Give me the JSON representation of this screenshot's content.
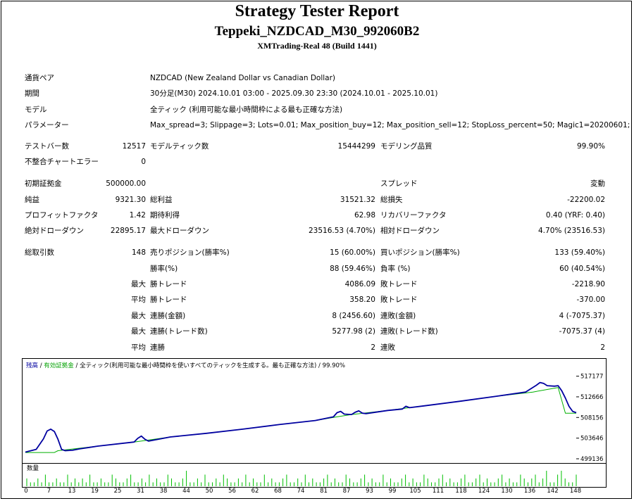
{
  "header": {
    "title": "Strategy Tester Report",
    "ea_name": "Teppeki_NZDCAD_M30_992060B2",
    "server": "XMTrading-Real 48 (Build 1441)"
  },
  "settings": [
    {
      "label": "通貨ペア",
      "value": "NZDCAD (New Zealand Dollar vs Canadian Dollar)"
    },
    {
      "label": "期間",
      "value": "30分足(M30) 2024.10.01 03:00 - 2025.09.30 23:30 (2024.10.01 - 2025.10.01)"
    },
    {
      "label": "モデル",
      "value": "全ティック (利用可能な最小時間枠による最も正確な方法)"
    },
    {
      "label": "パラメーター",
      "value": "Max_spread=3; Slippage=3; Lots=0.01; Max_position_buy=12; Max_position_sell=12; StopLoss_percent=50; Magic1=20200601;"
    }
  ],
  "stats": {
    "test_bars": {
      "label": "テストバー数",
      "value": "12517"
    },
    "model_ticks": {
      "label": "モデルティック数",
      "value": "15444299"
    },
    "model_quality": {
      "label": "モデリング品質",
      "value": "99.90%"
    },
    "chart_errors": {
      "label": "不整合チャートエラー",
      "value": "0"
    },
    "initial_deposit": {
      "label": "初期証拠金",
      "value": "500000.00"
    },
    "spread": {
      "label": "スプレッド",
      "value": "変動"
    },
    "net_profit": {
      "label": "純益",
      "value": "9321.30"
    },
    "gross_profit": {
      "label": "総利益",
      "value": "31521.32"
    },
    "gross_loss": {
      "label": "総損失",
      "value": "-22200.02"
    },
    "profit_factor": {
      "label": "プロフィットファクタ",
      "value": "1.42"
    },
    "expected_payoff": {
      "label": "期待利得",
      "value": "62.98"
    },
    "recovery_factor": {
      "label": "リカバリーファクタ",
      "value": "0.40 (YRF: 0.40)"
    },
    "abs_drawdown": {
      "label": "絶対ドローダウン",
      "value": "22895.17"
    },
    "max_drawdown": {
      "label": "最大ドローダウン",
      "value": "23516.53 (4.70%)"
    },
    "rel_drawdown": {
      "label": "相対ドローダウン",
      "value": "4.70% (23516.53)"
    },
    "total_trades": {
      "label": "総取引数",
      "value": "148"
    },
    "short_positions": {
      "label": "売りポジション(勝率%)",
      "value": "15 (60.00%)"
    },
    "long_positions": {
      "label": "買いポジション(勝率%)",
      "value": "133 (59.40%)"
    },
    "win_rate": {
      "label": "勝率(%)",
      "value": "88 (59.46%)"
    },
    "loss_rate": {
      "label": "負率 (%)",
      "value": "60 (40.54%)"
    },
    "max_prefix": "最大",
    "avg_prefix": "平均",
    "largest_win": {
      "label": "勝トレード",
      "value": "4086.09"
    },
    "largest_loss": {
      "label": "敗トレード",
      "value": "-2218.90"
    },
    "average_win": {
      "label": "勝トレード",
      "value": "358.20"
    },
    "average_loss": {
      "label": "敗トレード",
      "value": "-370.00"
    },
    "max_consec_wins": {
      "label": "連勝(金額)",
      "value": "8 (2456.60)"
    },
    "max_consec_losses": {
      "label": "連敗(金額)",
      "value": "4 (-7075.37)"
    },
    "max_consec_profit": {
      "label": "連勝(トレード数)",
      "value": "5277.98 (2)"
    },
    "max_consec_loss": {
      "label": "連敗(トレード数)",
      "value": "-7075.37 (4)"
    },
    "avg_consec_wins": {
      "label": "連勝",
      "value": "2"
    },
    "avg_consec_losses": {
      "label": "連敗",
      "value": "2"
    }
  },
  "chart_data": {
    "type": "line",
    "legend": {
      "balance": "残高",
      "sep1": " / ",
      "margin": "有効証拠金",
      "sep2": " / ",
      "model": "全ティック(利用可能な最小時間枠を使いすべてのティックを生成する。最も正確な方法)",
      "sep3": " / ",
      "quality": "99.90%"
    },
    "yticks": [
      "517177",
      "512666",
      "508156",
      "503646",
      "499136"
    ],
    "ylim": [
      499136,
      518500
    ],
    "xlim": [
      0,
      152
    ],
    "colors": {
      "balance": "#00b000",
      "equity": "#0000a0"
    },
    "series": [
      {
        "name": "残高",
        "color": "#00b000",
        "x": [
          0,
          8,
          9,
          20,
          30,
          40,
          50,
          60,
          70,
          80,
          86,
          90,
          100,
          110,
          120,
          130,
          140,
          147,
          149,
          152
        ],
        "y": [
          500500,
          500500,
          500900,
          501900,
          502800,
          503900,
          504700,
          505600,
          506600,
          507500,
          508300,
          508800,
          509700,
          510700,
          511700,
          512800,
          513700,
          514700,
          509100,
          509100
        ]
      },
      {
        "name": "有効証拠金",
        "color": "#0000a0",
        "x": [
          0,
          3,
          5,
          6,
          7,
          8,
          9,
          10,
          11,
          13,
          15,
          20,
          30,
          31,
          32,
          33,
          34,
          40,
          50,
          60,
          70,
          80,
          85,
          86,
          87,
          88,
          90,
          91,
          92,
          93,
          94,
          100,
          104,
          105,
          106,
          110,
          120,
          130,
          138,
          141,
          142,
          143,
          144,
          146,
          147,
          148,
          149,
          150,
          151,
          152
        ],
        "y": [
          500600,
          501200,
          503500,
          505200,
          505600,
          505100,
          503400,
          501200,
          500900,
          501000,
          501300,
          501900,
          502800,
          503600,
          504100,
          503400,
          503000,
          503900,
          504700,
          505600,
          506600,
          507500,
          508300,
          509200,
          509500,
          508900,
          508800,
          509300,
          509600,
          509100,
          509000,
          509700,
          510000,
          510600,
          510300,
          510700,
          511700,
          512800,
          513700,
          515200,
          515800,
          515600,
          515100,
          515000,
          515100,
          514000,
          512400,
          510600,
          509500,
          509200
        ]
      }
    ],
    "volume": {
      "label": "数量",
      "xticks": [
        "0",
        "7",
        "13",
        "19",
        "25",
        "31",
        "38",
        "44",
        "50",
        "56",
        "62",
        "68",
        "74",
        "81",
        "87",
        "93",
        "99",
        "105",
        "111",
        "118",
        "124",
        "130",
        "136",
        "142",
        "148"
      ],
      "values": [
        2,
        1,
        1,
        2,
        1,
        3,
        1,
        1,
        2,
        1,
        1,
        3,
        1,
        2,
        1,
        2,
        1,
        3,
        1,
        1,
        2,
        1,
        1,
        3,
        2,
        1,
        1,
        2,
        3,
        1,
        1,
        2,
        1,
        3,
        1,
        2,
        1,
        1,
        3,
        2,
        1,
        1,
        2,
        4,
        1,
        1,
        2,
        1,
        3,
        1,
        1,
        2,
        1,
        3,
        2,
        1,
        1,
        2,
        1,
        3,
        1,
        2,
        1,
        1,
        3,
        1,
        2,
        1,
        1,
        2,
        3,
        1,
        1,
        2,
        1,
        3,
        1,
        2,
        1,
        1,
        2,
        3,
        1,
        2,
        1,
        1,
        3,
        2,
        1,
        1,
        2,
        3,
        1,
        2,
        1,
        1,
        3,
        1,
        2,
        1,
        1,
        2,
        3,
        1,
        2,
        1,
        1,
        3,
        2,
        1,
        1,
        2,
        3,
        1,
        2,
        1,
        1,
        2,
        3,
        1,
        1,
        2,
        3,
        1,
        2,
        1,
        1,
        2,
        3,
        1,
        2,
        1,
        1,
        3,
        2,
        1,
        2,
        3,
        1,
        2,
        4,
        1,
        1,
        3,
        4,
        2,
        1,
        1,
        3
      ]
    }
  }
}
